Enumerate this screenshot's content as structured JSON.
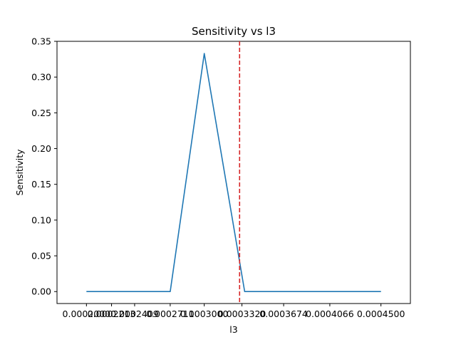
{
  "chart_data": {
    "type": "line",
    "title": "Sensitivity vs l3",
    "xlabel": "l3",
    "ylabel": "Sensitivity",
    "xlim": [
      0.000175,
      0.000475
    ],
    "ylim": [
      -0.0167,
      0.35
    ],
    "xticks": [
      0.0002,
      0.0002213,
      0.0002409,
      0.0002711,
      0.0003,
      0.000332,
      0.0003674,
      0.0004066,
      0.00045
    ],
    "xtick_labels": [
      "0.0002000",
      "0.0002213",
      "0.0002409",
      "0.0002711",
      "0.0003000",
      "0.0003320",
      "0.0003674",
      "0.0004066",
      "0.0004500"
    ],
    "yticks": [
      0.0,
      0.05,
      0.1,
      0.15,
      0.2,
      0.25,
      0.3,
      0.35
    ],
    "ytick_labels": [
      "0.00",
      "0.05",
      "0.10",
      "0.15",
      "0.20",
      "0.25",
      "0.30",
      "0.35"
    ],
    "series": [
      {
        "color": "#1f77b4",
        "x": [
          0.0002,
          0.0002213,
          0.0002409,
          0.0002711,
          0.0003,
          0.0003343,
          0.0003674,
          0.0004066,
          0.00045
        ],
        "y": [
          0.0,
          0.0,
          0.0,
          0.0,
          0.333,
          0.0,
          0.0,
          0.0,
          0.0
        ]
      }
    ],
    "vline": {
      "x": 0.00033,
      "color": "#d62728",
      "style": "dashed"
    },
    "grid": false,
    "legend": "none"
  }
}
